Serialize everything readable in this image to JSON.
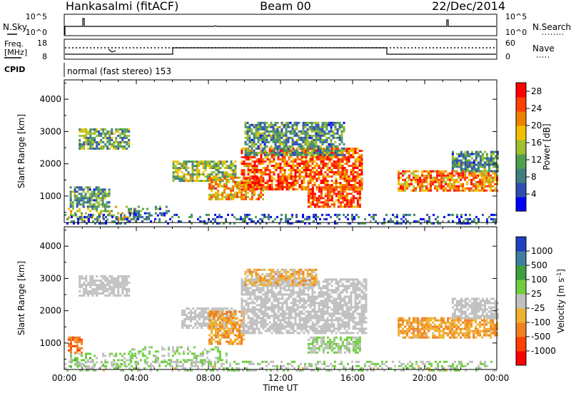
{
  "header": {
    "station": "Hankasalmi (fitACF)",
    "beam": "Beam 00",
    "date": "22/Dec/2014"
  },
  "summary_panels": {
    "nsky_label": "N.Sky",
    "nsearch_label": "N.Search",
    "nsky_ticks": [
      "10^5",
      "10^0"
    ],
    "nsearch_ticks": [
      "10^5",
      "10^0"
    ],
    "freq_label_1": "Freq.",
    "freq_label_2": "[MHz]",
    "freq_ticks": [
      "18",
      "8"
    ],
    "nave_label": "Nave",
    "nave_ticks": [
      "60",
      "0"
    ],
    "cpid_label": "CPID",
    "cpid_value": "normal (fast stereo) 153"
  },
  "chart_data": [
    {
      "type": "heatmap",
      "panel": "power",
      "ylabel": "Slant Range [km]",
      "xlabel": "",
      "ylim": [
        180,
        4600
      ],
      "xlim": [
        0,
        24
      ],
      "yticks": [
        "1000",
        "2000",
        "3000",
        "4000"
      ],
      "xticks": [
        "00:00",
        "04:00",
        "08:00",
        "12:00",
        "16:00",
        "20:00",
        "00:00"
      ],
      "colorbar": {
        "label": "Power [dB]",
        "ticks": [
          "4",
          "8",
          "12",
          "16",
          "20",
          "24",
          "28"
        ],
        "range": [
          0,
          30
        ],
        "colors": [
          "#0000ff",
          "#2f4fb0",
          "#3f7f7f",
          "#4f9f4f",
          "#9fbf2f",
          "#f0c000",
          "#f08000",
          "#ff4000",
          "#ff0000"
        ]
      },
      "regions": [
        {
          "t0": 0.2,
          "t1": 4.0,
          "r0": 250,
          "r1": 700,
          "value": 16
        },
        {
          "t0": 0.3,
          "t1": 2.5,
          "r0": 700,
          "r1": 1300,
          "value": 10
        },
        {
          "t0": 0.8,
          "t1": 3.6,
          "r0": 2500,
          "r1": 3100,
          "value": 12
        },
        {
          "t0": 3.6,
          "t1": 5.8,
          "r0": 400,
          "r1": 700,
          "value": 8
        },
        {
          "t0": 6.0,
          "t1": 9.5,
          "r0": 1500,
          "r1": 2100,
          "value": 14
        },
        {
          "t0": 8.0,
          "t1": 11.0,
          "r0": 900,
          "r1": 1600,
          "value": 20
        },
        {
          "t0": 9.8,
          "t1": 16.5,
          "r0": 1200,
          "r1": 2500,
          "value": 24
        },
        {
          "t0": 13.5,
          "t1": 16.4,
          "r0": 700,
          "r1": 1300,
          "value": 26
        },
        {
          "t0": 10.0,
          "t1": 15.5,
          "r0": 2300,
          "r1": 3300,
          "value": 10
        },
        {
          "t0": 18.5,
          "t1": 24.0,
          "r0": 1200,
          "r1": 1800,
          "value": 22
        },
        {
          "t0": 21.5,
          "t1": 24.0,
          "r0": 1800,
          "r1": 2400,
          "value": 10
        },
        {
          "t0": 0.0,
          "t1": 24.0,
          "r0": 180,
          "r1": 450,
          "value": 6
        }
      ]
    },
    {
      "type": "heatmap",
      "panel": "velocity",
      "ylabel": "Slant Range [km]",
      "xlabel": "Time UT",
      "ylim": [
        180,
        4600
      ],
      "xlim": [
        0,
        24
      ],
      "yticks": [
        "1000",
        "2000",
        "3000",
        "4000"
      ],
      "xticks": [
        "00:00",
        "04:00",
        "08:00",
        "12:00",
        "16:00",
        "20:00",
        "00:00"
      ],
      "colorbar": {
        "label": "Velocity [m s^-1]",
        "ticks": [
          "1000",
          "500",
          "100",
          "25",
          "-25",
          "-100",
          "-500",
          "-1000"
        ],
        "range": [
          -1000,
          1000
        ],
        "colors": [
          "#2040c0",
          "#3f7f9f",
          "#3f9f3f",
          "#6fcf3f",
          "#c0c0c0",
          "#f0b030",
          "#f08020",
          "#ff4000",
          "#ff0000"
        ]
      },
      "regions": [
        {
          "t0": 0.2,
          "t1": 4.0,
          "r0": 250,
          "r1": 700,
          "value": 150
        },
        {
          "t0": 0.2,
          "t1": 1.0,
          "r0": 700,
          "r1": 1200,
          "value": -500
        },
        {
          "t0": 0.8,
          "t1": 3.6,
          "r0": 2500,
          "r1": 3100,
          "value": 0
        },
        {
          "t0": 3.6,
          "t1": 9.0,
          "r0": 400,
          "r1": 900,
          "value": 120
        },
        {
          "t0": 6.5,
          "t1": 9.5,
          "r0": 1500,
          "r1": 2100,
          "value": 0
        },
        {
          "t0": 8.0,
          "t1": 10.0,
          "r0": 1000,
          "r1": 2000,
          "value": -300
        },
        {
          "t0": 9.8,
          "t1": 16.8,
          "r0": 1300,
          "r1": 3000,
          "value": 0
        },
        {
          "t0": 10.0,
          "t1": 14.0,
          "r0": 2800,
          "r1": 3300,
          "value": -200
        },
        {
          "t0": 13.5,
          "t1": 16.4,
          "r0": 700,
          "r1": 1200,
          "value": 110
        },
        {
          "t0": 18.5,
          "t1": 24.0,
          "r0": 1200,
          "r1": 1800,
          "value": -300
        },
        {
          "t0": 21.5,
          "t1": 24.0,
          "r0": 1800,
          "r1": 2400,
          "value": 0
        },
        {
          "t0": 0.0,
          "t1": 24.0,
          "r0": 180,
          "r1": 450,
          "value": 80
        }
      ]
    }
  ],
  "axis_labels": {
    "power_y": "Slant Range [km]",
    "velocity_y": "Slant Range [km]",
    "time_x": "Time UT",
    "power_cb": "Power [dB]",
    "velocity_cb_main": "Velocity [m s",
    "velocity_cb_sup": "-1",
    "velocity_cb_end": "]"
  }
}
